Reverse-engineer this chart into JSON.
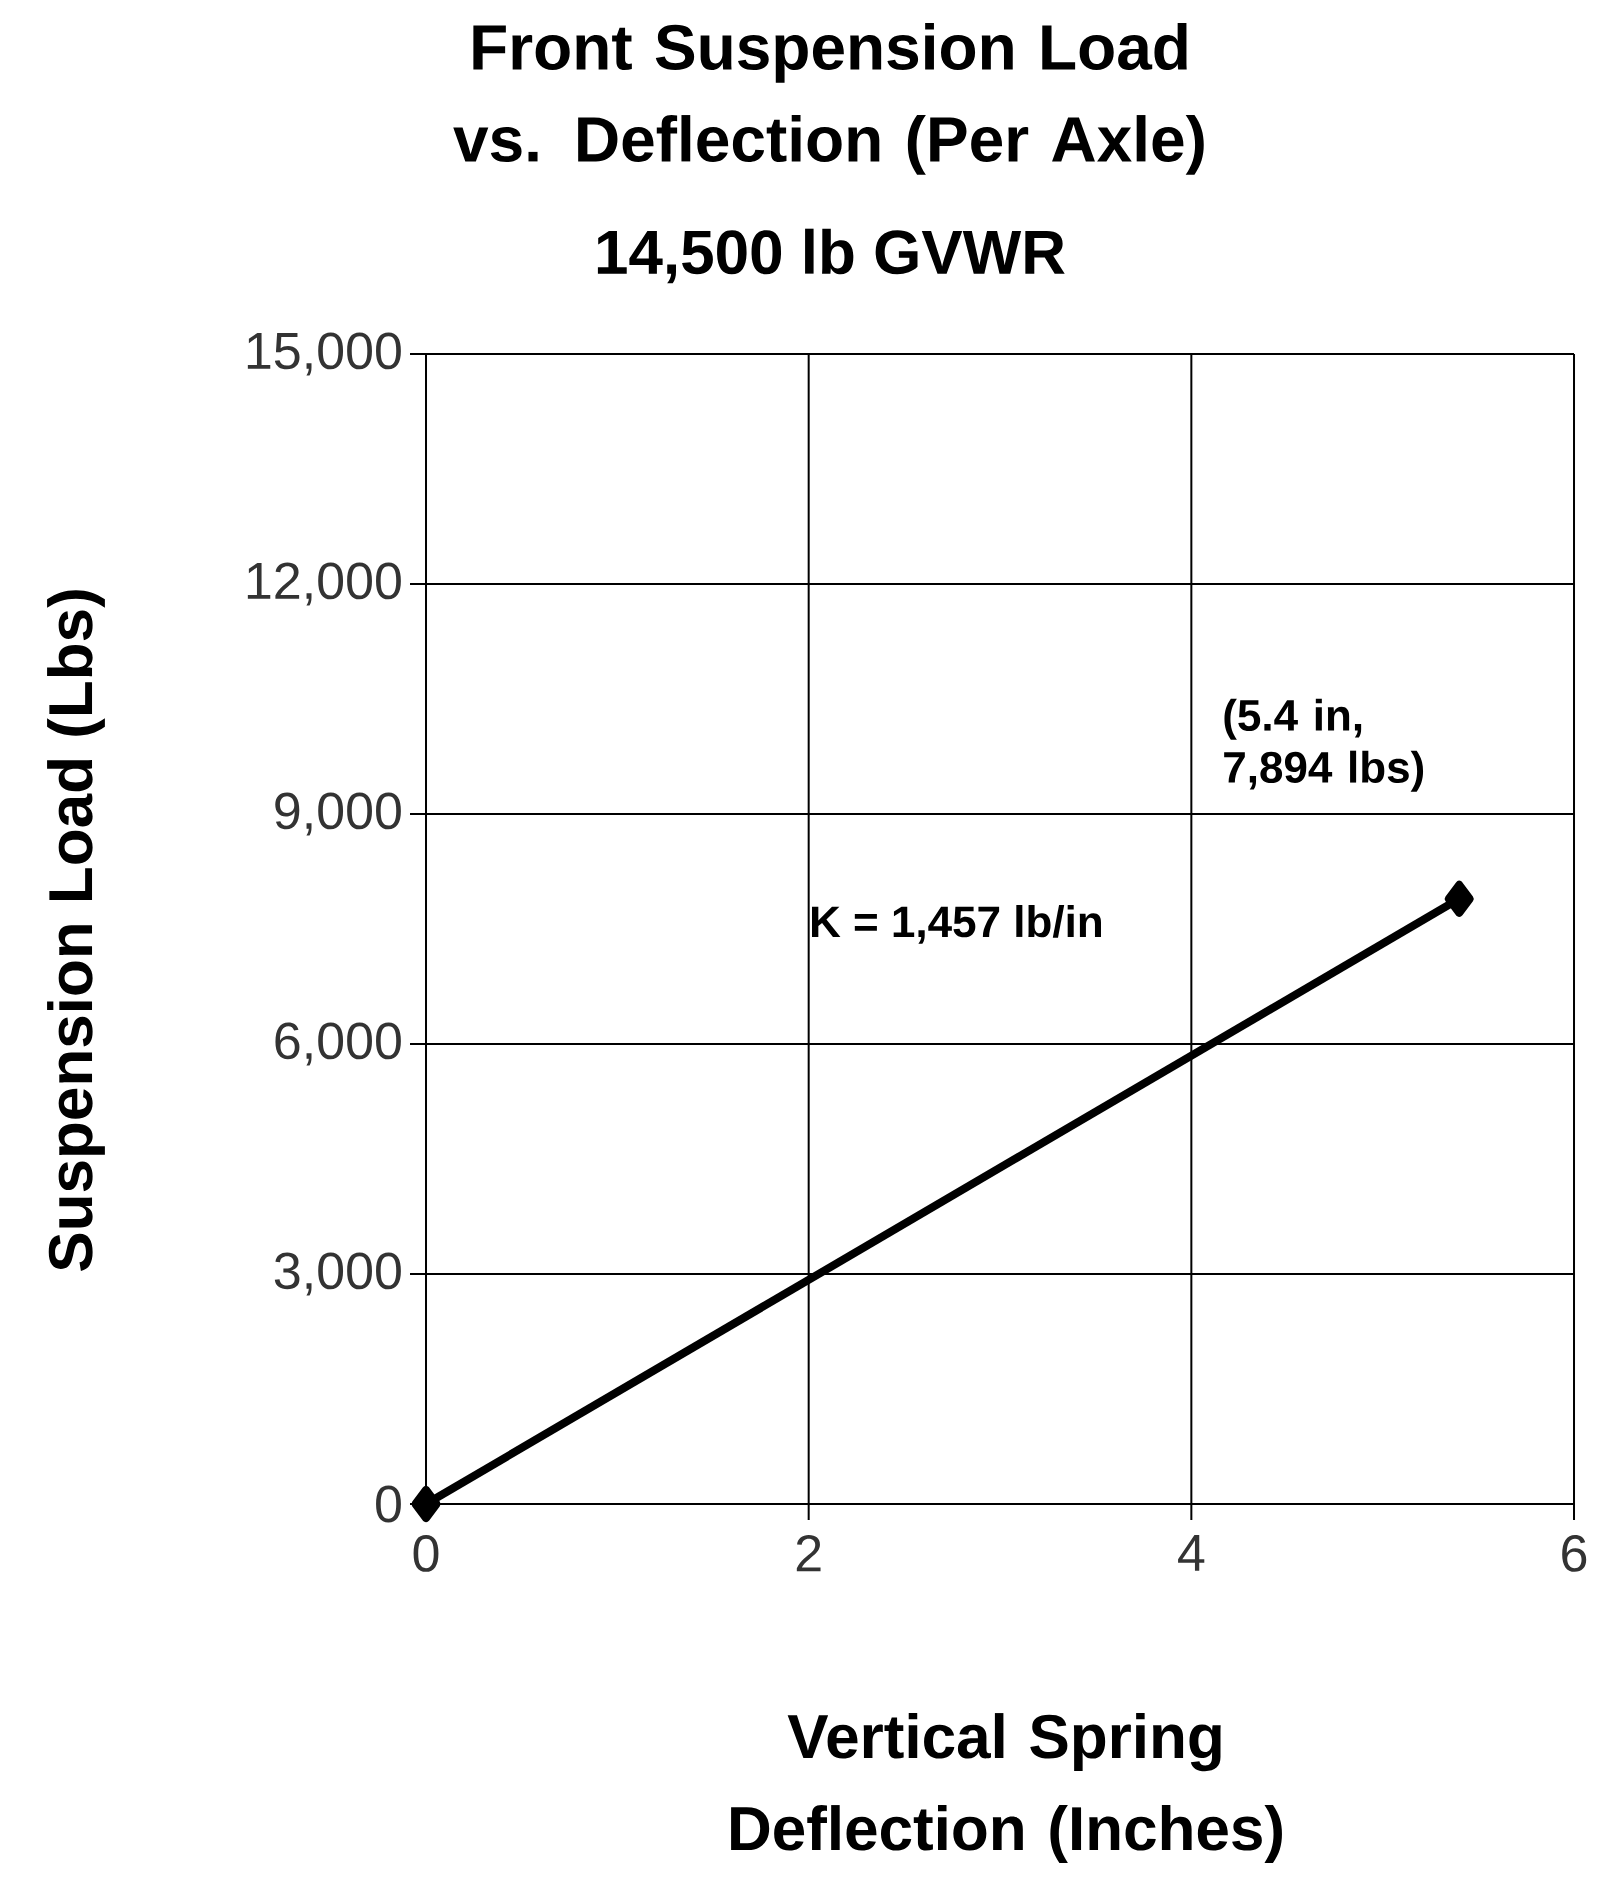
{
  "chart_data": {
    "type": "line",
    "title": "Front Suspension Load vs. Deflection (Per Axle)",
    "subtitle": "14,500 lb GVWR",
    "xlabel": "Vertical Spring Deflection (Inches)",
    "ylabel": "Suspension Load  (Lbs)",
    "x": [
      0,
      5.4
    ],
    "values": [
      0,
      7894
    ],
    "color": "#000000",
    "marker": "diamond",
    "line_style": "solid",
    "xlim": [
      0,
      6
    ],
    "xticks": [
      0,
      2,
      4,
      6
    ],
    "ylim": [
      0,
      15000
    ],
    "yticks": [
      0,
      {
        "value": 3000,
        "label": "3,000"
      },
      {
        "value": 6000,
        "label": "6,000"
      },
      {
        "value": 9000,
        "label": "9,000"
      },
      {
        "value": 12000,
        "label": "12,000"
      },
      {
        "value": 15000,
        "label": "15,000"
      }
    ],
    "grid": true,
    "annotations": [
      {
        "text": "(5.4 in, 7,894 lbs)",
        "x": 5.4,
        "y": 7894
      },
      "K = 1,457 lb/in"
    ]
  }
}
